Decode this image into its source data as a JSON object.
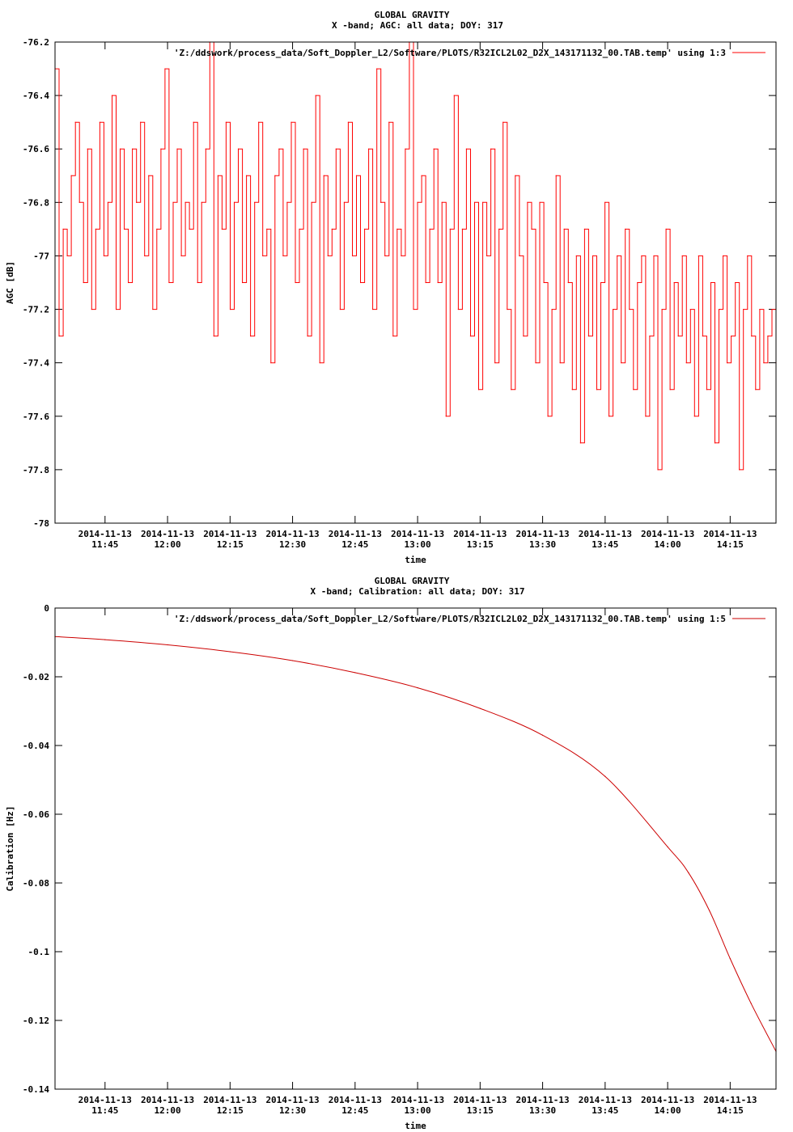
{
  "chart_data": [
    {
      "type": "line",
      "title": "GLOBAL GRAVITY",
      "subtitle": "X -band; AGC: all data; DOY: 317",
      "xlabel": "time",
      "ylabel": "AGC [dB]",
      "ylim": [
        -78,
        -76.2
      ],
      "yticks": [
        "-76.2",
        "-76.4",
        "-76.6",
        "-76.8",
        "-77",
        "-77.2",
        "-77.4",
        "-77.6",
        "-77.8",
        "-78"
      ],
      "xlim": [
        "2014-11-13 11:33",
        "2014-11-13 14:26"
      ],
      "xtick_values": [
        "11:45",
        "12:00",
        "12:15",
        "12:30",
        "12:45",
        "13:00",
        "13:15",
        "13:30",
        "13:45",
        "14:00",
        "14:15"
      ],
      "xtick_date": "2014-11-13",
      "legend_position": "top-right",
      "color": "#ff0000",
      "series": [
        {
          "name": "'Z:/ddswork/process_data/Soft_Doppler_L2/Software/PLOTS/R32ICL2L02_D2X_143171132_00.TAB.temp' using 1:3",
          "x_start": "2014-11-13 11:33",
          "x_step_seconds": 60,
          "values": [
            -76.3,
            -77.3,
            -76.9,
            -77.0,
            -76.7,
            -76.5,
            -76.8,
            -77.1,
            -76.6,
            -77.2,
            -76.9,
            -76.5,
            -77.0,
            -76.8,
            -76.4,
            -77.2,
            -76.6,
            -76.9,
            -77.1,
            -76.6,
            -76.8,
            -76.5,
            -77.0,
            -76.7,
            -77.2,
            -76.9,
            -76.6,
            -76.3,
            -77.1,
            -76.8,
            -76.6,
            -77.0,
            -76.8,
            -76.9,
            -76.5,
            -77.1,
            -76.8,
            -76.6,
            -76.2,
            -77.3,
            -76.7,
            -76.9,
            -76.5,
            -77.2,
            -76.8,
            -76.6,
            -77.1,
            -76.7,
            -77.3,
            -76.8,
            -76.5,
            -77.0,
            -76.9,
            -77.4,
            -76.7,
            -76.6,
            -77.0,
            -76.8,
            -76.5,
            -77.1,
            -76.9,
            -76.6,
            -77.3,
            -76.8,
            -76.4,
            -77.4,
            -76.7,
            -77.0,
            -76.9,
            -76.6,
            -77.2,
            -76.8,
            -76.5,
            -77.0,
            -76.7,
            -77.1,
            -76.9,
            -76.6,
            -77.2,
            -76.3,
            -76.8,
            -77.0,
            -76.5,
            -77.3,
            -76.9,
            -77.0,
            -76.6,
            -76.2,
            -77.2,
            -76.8,
            -76.7,
            -77.1,
            -76.9,
            -76.6,
            -77.1,
            -76.8,
            -77.6,
            -76.9,
            -76.4,
            -77.2,
            -76.9,
            -76.6,
            -77.3,
            -76.8,
            -77.5,
            -76.8,
            -77.0,
            -76.6,
            -77.4,
            -76.9,
            -76.5,
            -77.2,
            -77.5,
            -76.7,
            -77.0,
            -77.3,
            -76.8,
            -76.9,
            -77.4,
            -76.8,
            -77.1,
            -77.6,
            -77.2,
            -76.7,
            -77.4,
            -76.9,
            -77.1,
            -77.5,
            -77.0,
            -77.7,
            -76.9,
            -77.3,
            -77.0,
            -77.5,
            -77.1,
            -76.8,
            -77.6,
            -77.2,
            -77.0,
            -77.4,
            -76.9,
            -77.2,
            -77.5,
            -77.1,
            -77.0,
            -77.6,
            -77.3,
            -77.0,
            -77.8,
            -77.2,
            -76.9,
            -77.5,
            -77.1,
            -77.3,
            -77.0,
            -77.4,
            -77.2,
            -77.6,
            -77.0,
            -77.3,
            -77.5,
            -77.1,
            -77.7,
            -77.2,
            -77.0,
            -77.4,
            -77.3,
            -77.1,
            -77.8,
            -77.2,
            -77.0,
            -77.3,
            -77.5,
            -77.2,
            -77.4,
            -77.3,
            -77.2,
            -77.4
          ]
        }
      ]
    },
    {
      "type": "line",
      "title": "GLOBAL GRAVITY",
      "subtitle": "X -band; Calibration: all data; DOY: 317",
      "xlabel": "time",
      "ylabel": "Calibration [Hz]",
      "ylim": [
        -0.14,
        0
      ],
      "yticks": [
        "0",
        "-0.02",
        "-0.04",
        "-0.06",
        "-0.08",
        "-0.1",
        "-0.12",
        "-0.14"
      ],
      "xlim": [
        "2014-11-13 11:33",
        "2014-11-13 14:26"
      ],
      "xtick_values": [
        "11:45",
        "12:00",
        "12:15",
        "12:30",
        "12:45",
        "13:00",
        "13:15",
        "13:30",
        "13:45",
        "14:00",
        "14:15"
      ],
      "xtick_date": "2014-11-13",
      "legend_position": "top-right",
      "color": "#cc0000",
      "series": [
        {
          "name": "'Z:/ddswork/process_data/Soft_Doppler_L2/Software/PLOTS/R32ICL2L02_D2X_143171132_00.TAB.temp' using 1:5",
          "x": [
            "2014-11-13 11:33",
            "2014-11-13 11:45",
            "2014-11-13 12:00",
            "2014-11-13 12:15",
            "2014-11-13 12:30",
            "2014-11-13 12:45",
            "2014-11-13 13:00",
            "2014-11-13 13:15",
            "2014-11-13 13:30",
            "2014-11-13 13:45",
            "2014-11-13 14:00",
            "2014-11-13 14:05",
            "2014-11-13 14:10",
            "2014-11-13 14:15",
            "2014-11-13 14:20",
            "2014-11-13 14:26"
          ],
          "values": [
            -0.0083,
            -0.0092,
            -0.0107,
            -0.0127,
            -0.0153,
            -0.0188,
            -0.0232,
            -0.0292,
            -0.037,
            -0.049,
            -0.0695,
            -0.077,
            -0.088,
            -0.102,
            -0.115,
            -0.129
          ]
        }
      ]
    }
  ]
}
